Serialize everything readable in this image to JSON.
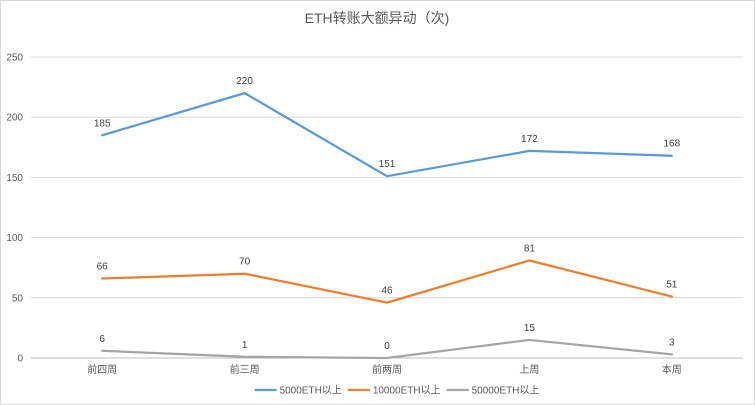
{
  "chart_data": {
    "type": "line",
    "title": "ETH转账大额异动（次)",
    "categories": [
      "前四周",
      "前三周",
      "前两周",
      "上周",
      "本周"
    ],
    "ylim": [
      0,
      250
    ],
    "yticks": [
      0,
      50,
      100,
      150,
      200,
      250
    ],
    "grid": true,
    "legend": "bottom",
    "xlabel": "",
    "ylabel": "",
    "series": [
      {
        "name": "5000ETH以上",
        "color": "#5b9bd5",
        "values": [
          185,
          220,
          151,
          172,
          168
        ]
      },
      {
        "name": "10000ETH以上",
        "color": "#ed7d31",
        "values": [
          66,
          70,
          46,
          81,
          51
        ]
      },
      {
        "name": "50000ETH以上",
        "color": "#a5a5a5",
        "values": [
          6,
          1,
          0,
          15,
          3
        ]
      }
    ]
  }
}
